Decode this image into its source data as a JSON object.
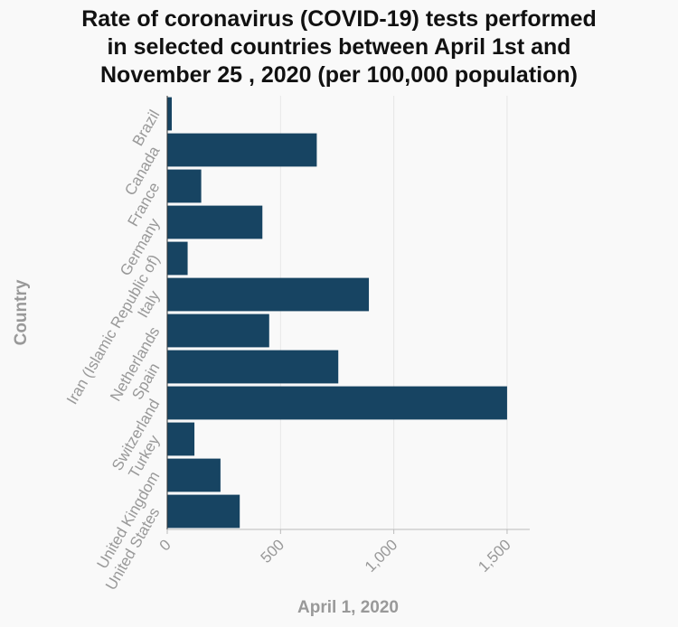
{
  "chart_data": {
    "type": "bar",
    "orientation": "horizontal",
    "title_lines": [
      "Rate of coronavirus (COVID-19) tests performed",
      "in selected countries between April 1st and",
      "November 25 , 2020 (per 100,000 population)"
    ],
    "xlabel": "April 1, 2020",
    "ylabel": "Country",
    "xlim": [
      0,
      1600
    ],
    "xticks": [
      0,
      500,
      1000,
      1500
    ],
    "xtick_labels": [
      "0",
      "500",
      "1,000",
      "1,500"
    ],
    "grid": true,
    "bar_color": "#174462",
    "categories": [
      "Brazil",
      "Canada",
      "France",
      "Germany",
      "Iran (Islamic Republic of)",
      "Italy",
      "Netherlands",
      "Spain",
      "Switzerland",
      "Turkey",
      "United Kingdom",
      "United States"
    ],
    "values": [
      20,
      660,
      150,
      420,
      90,
      890,
      450,
      755,
      1500,
      120,
      235,
      320
    ]
  }
}
